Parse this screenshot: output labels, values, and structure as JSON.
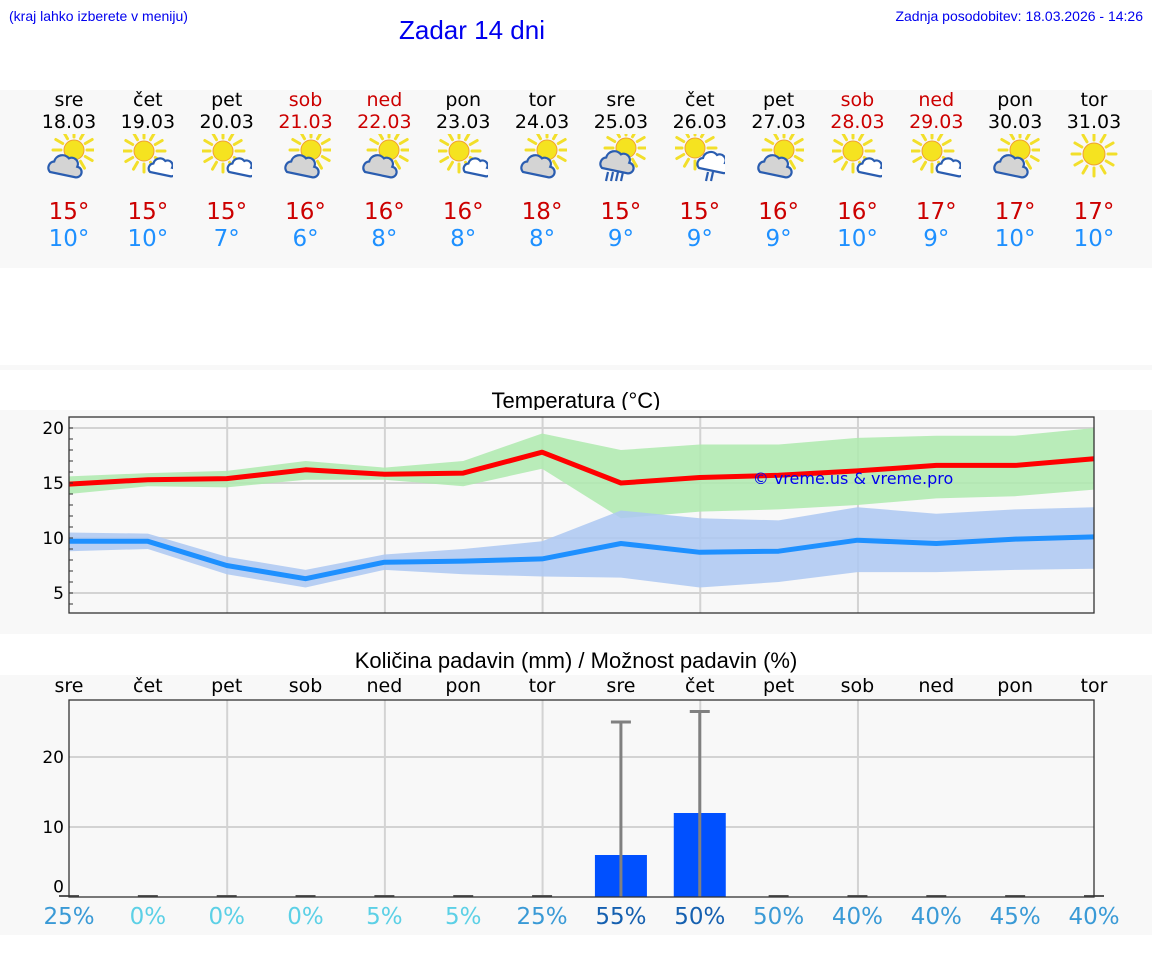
{
  "header": {
    "hint": "(kraj lahko izberete v meniju)",
    "title": "Zadar 14 dni",
    "updated": "Zadnja posodobitev: 18.03.2026 - 14:26"
  },
  "days": [
    {
      "name": "sre",
      "date": "18.03",
      "weekend": false,
      "icon": "partly-cloudy-heavy-icon",
      "tmax": "15°",
      "tmin": "10°"
    },
    {
      "name": "čet",
      "date": "19.03",
      "weekend": false,
      "icon": "sun-small-cloud-icon",
      "tmax": "15°",
      "tmin": "10°"
    },
    {
      "name": "pet",
      "date": "20.03",
      "weekend": false,
      "icon": "sun-small-cloud-icon",
      "tmax": "15°",
      "tmin": "7°"
    },
    {
      "name": "sob",
      "date": "21.03",
      "weekend": true,
      "icon": "partly-cloudy-heavy-icon",
      "tmax": "16°",
      "tmin": "6°"
    },
    {
      "name": "ned",
      "date": "22.03",
      "weekend": true,
      "icon": "partly-cloudy-heavy-icon",
      "tmax": "16°",
      "tmin": "8°"
    },
    {
      "name": "pon",
      "date": "23.03",
      "weekend": false,
      "icon": "sun-small-cloud-icon",
      "tmax": "16°",
      "tmin": "8°"
    },
    {
      "name": "tor",
      "date": "24.03",
      "weekend": false,
      "icon": "partly-cloudy-heavy-icon",
      "tmax": "18°",
      "tmin": "8°"
    },
    {
      "name": "sre",
      "date": "25.03",
      "weekend": false,
      "icon": "sun-cloud-heavy-rain-icon",
      "tmax": "15°",
      "tmin": "9°"
    },
    {
      "name": "čet",
      "date": "26.03",
      "weekend": false,
      "icon": "sun-cloud-light-rain-icon",
      "tmax": "15°",
      "tmin": "9°"
    },
    {
      "name": "pet",
      "date": "27.03",
      "weekend": false,
      "icon": "partly-cloudy-heavy-icon",
      "tmax": "16°",
      "tmin": "9°"
    },
    {
      "name": "sob",
      "date": "28.03",
      "weekend": true,
      "icon": "sun-small-cloud-icon",
      "tmax": "16°",
      "tmin": "10°"
    },
    {
      "name": "ned",
      "date": "29.03",
      "weekend": true,
      "icon": "sun-small-cloud-icon",
      "tmax": "17°",
      "tmin": "9°"
    },
    {
      "name": "pon",
      "date": "30.03",
      "weekend": false,
      "icon": "partly-cloudy-heavy-icon",
      "tmax": "17°",
      "tmin": "10°"
    },
    {
      "name": "tor",
      "date": "31.03",
      "weekend": false,
      "icon": "sun-icon",
      "tmax": "17°",
      "tmin": "10°"
    }
  ],
  "colors": {
    "link": "#0000ee",
    "weekend": "#cc0000",
    "tmax_line": "#ff0000",
    "tmin_line": "#1e90ff",
    "tmax_band": "#aeeaae",
    "tmin_band": "#adc8f2",
    "precip_bar": "#0050ff",
    "error_bar": "#808080",
    "panel_bg": "#f8f8f8"
  },
  "temp_chart": {
    "title": "Temperatura (°C)",
    "watermark": "© vreme.us & vreme.pro",
    "yticks": [
      "20",
      "15",
      "10",
      "5"
    ]
  },
  "precip_chart": {
    "title": "Količina padavin (mm) / Možnost padavin (%)",
    "yticks": [
      "20",
      "10",
      "0"
    ],
    "day_labels": [
      "sre",
      "čet",
      "pet",
      "sob",
      "ned",
      "pon",
      "tor",
      "sre",
      "čet",
      "pet",
      "sob",
      "ned",
      "pon",
      "tor"
    ],
    "probabilities": [
      "25%",
      "0%",
      "0%",
      "0%",
      "5%",
      "5%",
      "25%",
      "55%",
      "50%",
      "50%",
      "40%",
      "40%",
      "45%",
      "40%"
    ]
  },
  "chart_data": [
    {
      "type": "line",
      "title": "Temperatura (°C)",
      "xlabel": "",
      "ylabel": "°C",
      "categories": [
        "18.03",
        "19.03",
        "20.03",
        "21.03",
        "22.03",
        "23.03",
        "24.03",
        "25.03",
        "26.03",
        "27.03",
        "28.03",
        "29.03",
        "30.03",
        "31.03"
      ],
      "ylim": [
        3,
        21
      ],
      "yticks": [
        5,
        10,
        15,
        20
      ],
      "grid": true,
      "series": [
        {
          "name": "max",
          "color": "#ff0000",
          "values": [
            14.9,
            15.3,
            15.4,
            16.2,
            15.8,
            15.9,
            17.8,
            15.0,
            15.5,
            15.7,
            16.1,
            16.6,
            16.6,
            17.2
          ]
        },
        {
          "name": "max_band_high",
          "values": [
            15.6,
            15.9,
            16.1,
            17.0,
            16.4,
            17.0,
            19.5,
            18.0,
            18.5,
            18.5,
            19.1,
            19.3,
            19.3,
            20.0
          ]
        },
        {
          "name": "max_band_low",
          "values": [
            14.0,
            14.7,
            14.6,
            15.3,
            15.3,
            14.7,
            16.3,
            11.8,
            12.4,
            12.6,
            13.0,
            13.6,
            13.8,
            14.4
          ]
        },
        {
          "name": "min",
          "color": "#1e90ff",
          "values": [
            9.7,
            9.7,
            7.5,
            6.3,
            7.8,
            7.9,
            8.1,
            9.5,
            8.7,
            8.8,
            9.8,
            9.5,
            9.9,
            10.1
          ]
        },
        {
          "name": "min_band_high",
          "values": [
            10.5,
            10.4,
            8.3,
            7.1,
            8.5,
            9.0,
            9.7,
            12.5,
            11.8,
            11.6,
            12.8,
            12.2,
            12.6,
            12.8
          ]
        },
        {
          "name": "min_band_low",
          "values": [
            8.8,
            9.0,
            6.7,
            5.5,
            7.1,
            6.7,
            6.5,
            6.4,
            5.5,
            6.0,
            6.9,
            6.9,
            7.1,
            7.2
          ]
        }
      ],
      "annotations": [
        "© vreme.us & vreme.pro"
      ]
    },
    {
      "type": "bar",
      "title": "Količina padavin (mm) / Možnost padavin (%)",
      "xlabel": "",
      "ylabel": "mm",
      "categories": [
        "sre",
        "čet",
        "pet",
        "sob",
        "ned",
        "pon",
        "tor",
        "sre",
        "čet",
        "pet",
        "sob",
        "ned",
        "pon",
        "tor"
      ],
      "ylim": [
        0,
        28
      ],
      "yticks": [
        0,
        10,
        20
      ],
      "series": [
        {
          "name": "precipitation_mm",
          "color": "#0050ff",
          "values": [
            0,
            0,
            0,
            0,
            0,
            0,
            0,
            6,
            12,
            0,
            0,
            0,
            0,
            0
          ]
        },
        {
          "name": "precipitation_max_mm",
          "color": "#808080",
          "values": [
            0,
            0,
            0,
            0,
            0,
            0,
            0,
            25,
            26.5,
            0,
            0,
            0,
            0,
            0
          ]
        },
        {
          "name": "probability_pct",
          "values": [
            25,
            0,
            0,
            0,
            5,
            5,
            25,
            55,
            50,
            50,
            40,
            40,
            45,
            40
          ]
        }
      ]
    }
  ]
}
